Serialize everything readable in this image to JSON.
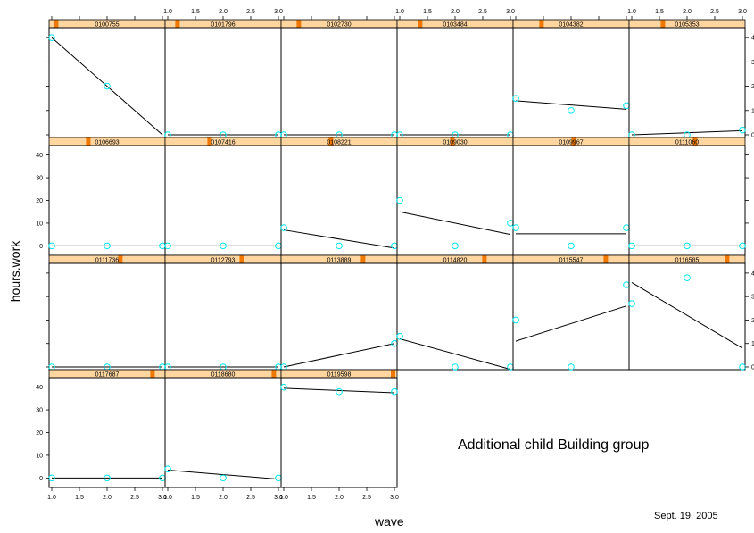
{
  "chart_data": {
    "type": "line",
    "xlabel": "wave",
    "ylabel": "hours.work",
    "xlim": [
      1.0,
      3.0
    ],
    "x_ticks": [
      "1.0",
      "1.5",
      "2.0",
      "2.5",
      "3.0"
    ],
    "y_ticks": [
      "0",
      "10",
      "20",
      "30",
      "40"
    ],
    "y_ticks_right": [
      "0",
      "1",
      "2",
      "3",
      "4"
    ],
    "annotation": "Additional child  Building group",
    "date": "Sept. 19, 2005",
    "panels": [
      {
        "id": "0100755",
        "ylim": [
          0,
          4.3
        ],
        "points": [
          [
            1,
            4
          ],
          [
            2,
            2
          ]
        ],
        "line": [
          [
            1,
            4
          ],
          [
            3,
            0
          ]
        ]
      },
      {
        "id": "0101796",
        "ylim": [
          0,
          4.3
        ],
        "points": [
          [
            1,
            0
          ],
          [
            2,
            0
          ],
          [
            3,
            0
          ]
        ],
        "line": [
          [
            1,
            0
          ],
          [
            3,
            0
          ]
        ]
      },
      {
        "id": "0102730",
        "ylim": [
          0,
          4.3
        ],
        "points": [
          [
            1,
            0
          ],
          [
            2,
            0
          ],
          [
            3,
            0
          ]
        ],
        "line": [
          [
            1,
            0
          ],
          [
            3,
            0
          ]
        ]
      },
      {
        "id": "0103484",
        "ylim": [
          0,
          4.3
        ],
        "points": [
          [
            1,
            0
          ],
          [
            2,
            0
          ],
          [
            3,
            0
          ]
        ],
        "line": [
          [
            1,
            0
          ],
          [
            3,
            0
          ]
        ]
      },
      {
        "id": "0104382",
        "ylim": [
          0,
          4.3
        ],
        "points": [
          [
            1,
            1.5
          ],
          [
            2,
            1
          ],
          [
            3,
            1.2
          ]
        ],
        "line": [
          [
            1,
            1.4
          ],
          [
            3,
            1.05
          ]
        ]
      },
      {
        "id": "0105353",
        "ylim": [
          0,
          4.3
        ],
        "points": [
          [
            1,
            0
          ],
          [
            2,
            0
          ],
          [
            3,
            0.2
          ]
        ],
        "line": [
          [
            1,
            0
          ],
          [
            3,
            0.17
          ]
        ]
      },
      {
        "id": "0106693",
        "ylim": [
          -3,
          43
        ],
        "points": [
          [
            1,
            0
          ],
          [
            2,
            0
          ],
          [
            3,
            0
          ]
        ],
        "line": [
          [
            1,
            0
          ],
          [
            3,
            0
          ]
        ]
      },
      {
        "id": "0107416",
        "ylim": [
          -3,
          43
        ],
        "points": [
          [
            1,
            0
          ],
          [
            2,
            0
          ],
          [
            3,
            0
          ]
        ],
        "line": [
          [
            1,
            0
          ],
          [
            3,
            0
          ]
        ]
      },
      {
        "id": "0108221",
        "ylim": [
          -3,
          43
        ],
        "points": [
          [
            1,
            8
          ],
          [
            2,
            0
          ],
          [
            3,
            0
          ]
        ],
        "line": [
          [
            1,
            7
          ],
          [
            3,
            -1
          ]
        ]
      },
      {
        "id": "0109030",
        "ylim": [
          -3,
          43
        ],
        "points": [
          [
            1,
            20
          ],
          [
            2,
            0
          ],
          [
            3,
            10
          ]
        ],
        "line": [
          [
            1,
            15
          ],
          [
            3,
            5
          ]
        ]
      },
      {
        "id": "0109967",
        "ylim": [
          -3,
          43
        ],
        "points": [
          [
            1,
            8
          ],
          [
            2,
            0
          ],
          [
            3,
            8
          ]
        ],
        "line": [
          [
            1,
            5.3
          ],
          [
            3,
            5.3
          ]
        ]
      },
      {
        "id": "0111060",
        "ylim": [
          -3,
          43
        ],
        "points": [
          [
            1,
            0
          ],
          [
            2,
            0
          ],
          [
            3,
            0
          ]
        ],
        "line": [
          [
            1,
            0
          ],
          [
            3,
            0
          ]
        ]
      },
      {
        "id": "0111736",
        "ylim": [
          0,
          4.3
        ],
        "points": [
          [
            1,
            0
          ],
          [
            2,
            0
          ],
          [
            3,
            0
          ]
        ],
        "line": [
          [
            1,
            0
          ],
          [
            3,
            0
          ]
        ]
      },
      {
        "id": "0112793",
        "ylim": [
          0,
          4.3
        ],
        "points": [
          [
            1,
            0
          ],
          [
            2,
            0
          ],
          [
            3,
            0
          ]
        ],
        "line": [
          [
            1,
            0
          ],
          [
            3,
            0
          ]
        ]
      },
      {
        "id": "0113889",
        "ylim": [
          0,
          4.3
        ],
        "points": [
          [
            1,
            0
          ],
          [
            3,
            1
          ]
        ],
        "line": [
          [
            1,
            0
          ],
          [
            3,
            1
          ]
        ]
      },
      {
        "id": "0114820",
        "ylim": [
          0,
          4.3
        ],
        "points": [
          [
            1,
            1.3
          ],
          [
            2,
            0
          ],
          [
            3,
            0
          ]
        ],
        "line": [
          [
            1,
            1.2
          ],
          [
            3,
            -0.1
          ]
        ]
      },
      {
        "id": "0115547",
        "ylim": [
          0,
          4.3
        ],
        "points": [
          [
            1,
            2
          ],
          [
            2,
            0
          ],
          [
            3,
            3.5
          ]
        ],
        "line": [
          [
            1,
            1.1
          ],
          [
            3,
            2.6
          ]
        ]
      },
      {
        "id": "0116585",
        "ylim": [
          0,
          4.3
        ],
        "points": [
          [
            1,
            2.7
          ],
          [
            2,
            3.8
          ],
          [
            3,
            0
          ]
        ],
        "line": [
          [
            1,
            3.6
          ],
          [
            3,
            0.8
          ]
        ]
      },
      {
        "id": "0117687",
        "ylim": [
          -3,
          43
        ],
        "points": [
          [
            1,
            0
          ],
          [
            2,
            0
          ],
          [
            3,
            0
          ]
        ],
        "line": [
          [
            1,
            0
          ],
          [
            3,
            0
          ]
        ]
      },
      {
        "id": "0118680",
        "ylim": [
          -3,
          43
        ],
        "points": [
          [
            1,
            4
          ],
          [
            2,
            0
          ],
          [
            3,
            0
          ]
        ],
        "line": [
          [
            1,
            3.5
          ],
          [
            3,
            -0.5
          ]
        ]
      },
      {
        "id": "0119598",
        "ylim": [
          -3,
          43
        ],
        "points": [
          [
            1,
            40
          ],
          [
            2,
            38
          ],
          [
            3,
            38
          ]
        ],
        "line": [
          [
            1,
            39.5
          ],
          [
            3,
            37.5
          ]
        ]
      }
    ],
    "strip_markers": [
      0.02,
      0.07,
      0.12,
      0.17,
      0.22,
      0.27,
      0.32,
      0.37,
      0.42,
      0.47,
      0.52,
      0.57,
      0.62,
      0.67,
      0.72,
      0.77,
      0.82,
      0.87,
      0.92,
      0.97,
      1.0
    ],
    "colors": {
      "strip_bg": "#ffd6a0",
      "strip_marker": "#f07800",
      "point": "#00e8f0",
      "line": "#000000",
      "frame": "#000000"
    }
  }
}
